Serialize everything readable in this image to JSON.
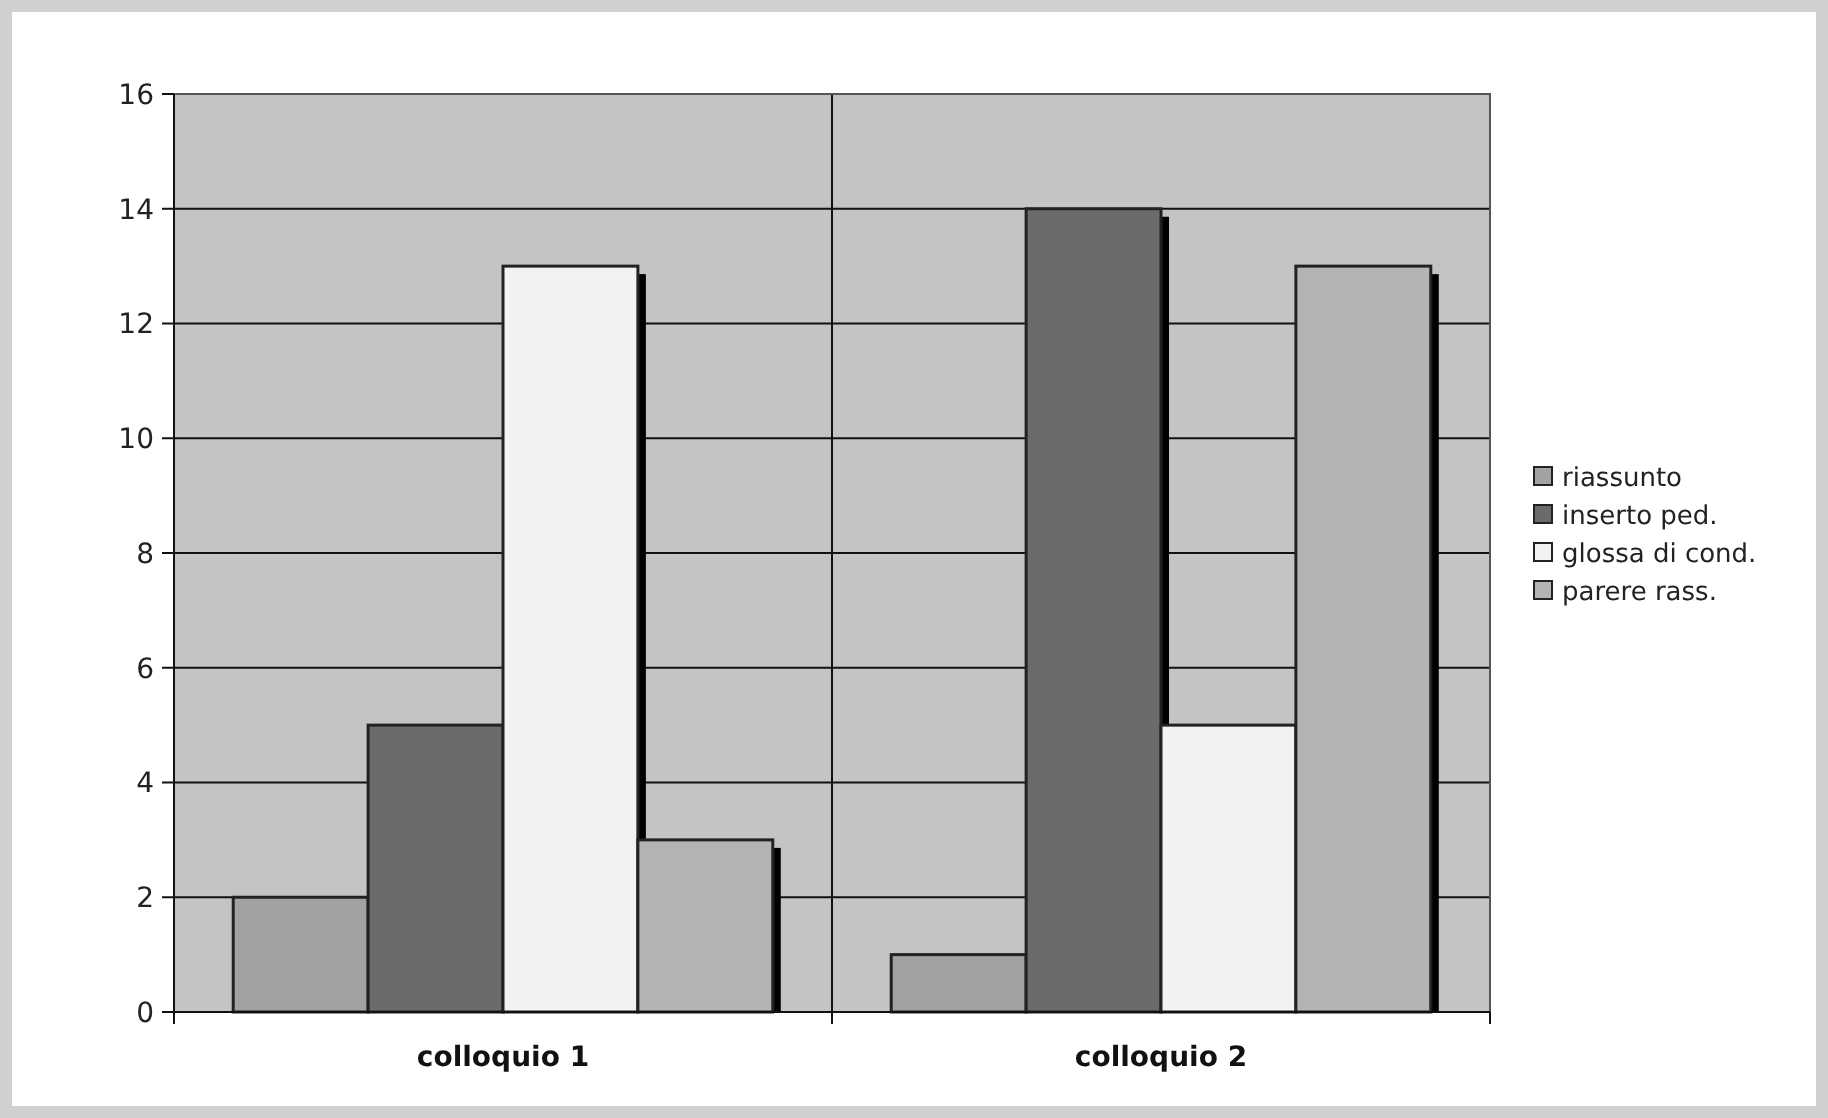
{
  "chart_data": {
    "type": "bar",
    "categories": [
      "colloquio 1",
      "colloquio 2"
    ],
    "series": [
      {
        "name": "riassunto",
        "color": "#a2a2a2",
        "values": [
          2,
          1
        ]
      },
      {
        "name": "inserto ped.",
        "color": "#6b6b6b",
        "values": [
          5,
          14
        ]
      },
      {
        "name": "glossa di cond.",
        "color": "#f2f2f2",
        "values": [
          13,
          5
        ]
      },
      {
        "name": "parere rass.",
        "color": "#b4b4b4",
        "values": [
          3,
          13
        ]
      }
    ],
    "ylim": [
      0,
      16
    ],
    "yticks": [
      0,
      2,
      4,
      6,
      8,
      10,
      12,
      14,
      16
    ],
    "grid": true,
    "legend": "right"
  }
}
